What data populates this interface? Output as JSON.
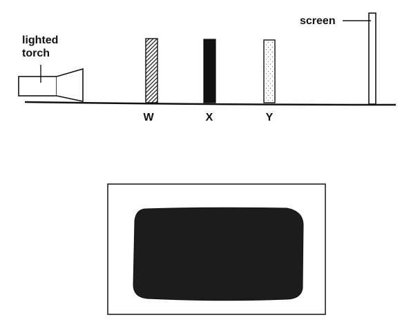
{
  "labels": {
    "torch": [
      "lighted",
      "torch"
    ],
    "screen": "screen",
    "objects": [
      "W",
      "X",
      "Y"
    ]
  },
  "colors": {
    "ink": "#111111",
    "shadow": "#1c1c1c",
    "background": "#ffffff"
  }
}
